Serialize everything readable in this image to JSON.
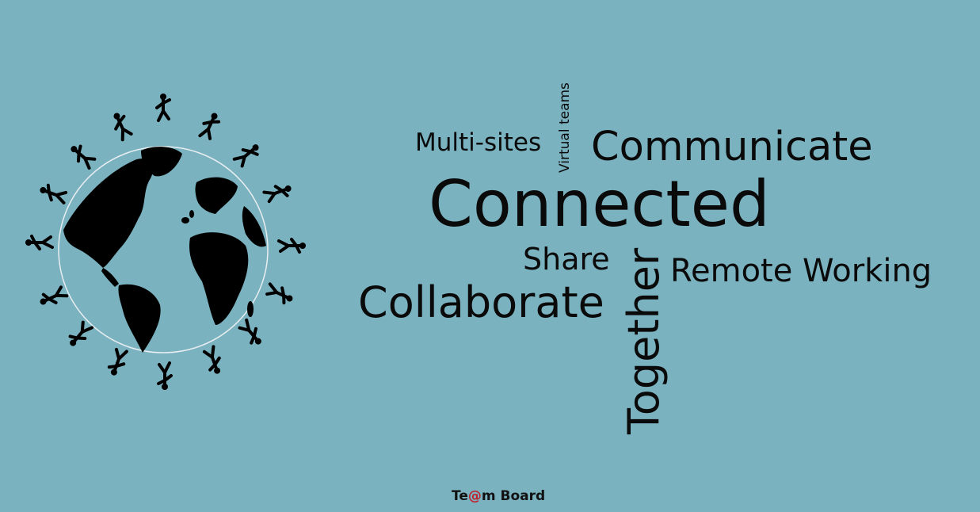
{
  "words": {
    "multi_sites": "Multi-sites",
    "virtual_teams": "Virtual teams",
    "communicate": "Communicate",
    "connected": "Connected",
    "share": "Share",
    "remote_working": "Remote Working",
    "collaborate": "Collaborate",
    "together": "Together"
  },
  "brand": {
    "prefix": "Te",
    "at": "@",
    "suffix": "m Board"
  },
  "colors": {
    "background": "#7ab2c0",
    "text": "#0a0a0a",
    "brand_accent": "#c0202a"
  },
  "graphic": {
    "icon": "globe-with-running-figures-icon"
  }
}
